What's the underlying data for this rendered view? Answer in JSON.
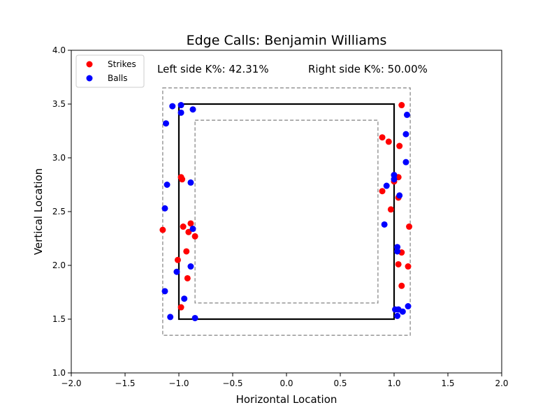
{
  "chart_data": {
    "type": "scatter",
    "title": "Edge Calls: Benjamin Williams",
    "xlabel": "Horizontal Location",
    "ylabel": "Vertical Location",
    "xlim": [
      -2.0,
      2.0
    ],
    "ylim": [
      1.0,
      4.0
    ],
    "x_ticks": [
      "−2.0",
      "−1.5",
      "−1.0",
      "−0.5",
      "0.0",
      "0.5",
      "1.0",
      "1.5",
      "2.0"
    ],
    "y_ticks": [
      "1.0",
      "1.5",
      "2.0",
      "2.5",
      "3.0",
      "3.5",
      "4.0"
    ],
    "grid": false,
    "legend_position": "top-left",
    "annotations": {
      "left": "Left side K%: 42.31%",
      "right": "Right side K%: 50.00%"
    },
    "zones": {
      "strike_zone": {
        "x": [
          -1.0,
          1.0
        ],
        "y": [
          1.5,
          3.5
        ]
      },
      "outer_edge": {
        "x": [
          -1.15,
          1.15
        ],
        "y": [
          1.35,
          3.65
        ]
      },
      "inner_edge": {
        "x": [
          -0.85,
          0.85
        ],
        "y": [
          1.65,
          3.35
        ]
      }
    },
    "series": [
      {
        "name": "Strikes",
        "color": "#ff0000",
        "points": [
          [
            -1.15,
            2.33
          ],
          [
            -0.98,
            2.82
          ],
          [
            -0.97,
            2.8
          ],
          [
            -0.96,
            2.36
          ],
          [
            -0.89,
            2.39
          ],
          [
            -0.91,
            2.31
          ],
          [
            -0.85,
            2.27
          ],
          [
            -0.93,
            2.13
          ],
          [
            -1.01,
            2.05
          ],
          [
            -0.92,
            1.88
          ],
          [
            -0.98,
            1.61
          ],
          [
            1.07,
            3.49
          ],
          [
            0.89,
            3.19
          ],
          [
            0.95,
            3.15
          ],
          [
            1.05,
            3.11
          ],
          [
            1.0,
            2.84
          ],
          [
            1.04,
            2.82
          ],
          [
            1.0,
            2.78
          ],
          [
            0.89,
            2.69
          ],
          [
            1.04,
            2.63
          ],
          [
            0.97,
            2.52
          ],
          [
            1.14,
            2.36
          ],
          [
            1.07,
            2.12
          ],
          [
            1.04,
            2.01
          ],
          [
            1.13,
            1.99
          ],
          [
            1.07,
            1.81
          ]
        ]
      },
      {
        "name": "Balls",
        "color": "#0000ff",
        "points": [
          [
            -1.06,
            3.48
          ],
          [
            -0.98,
            3.49
          ],
          [
            -0.98,
            3.42
          ],
          [
            -0.87,
            3.45
          ],
          [
            -1.12,
            3.32
          ],
          [
            -1.11,
            2.75
          ],
          [
            -0.89,
            2.77
          ],
          [
            -1.13,
            2.53
          ],
          [
            -0.87,
            2.34
          ],
          [
            -0.89,
            1.99
          ],
          [
            -1.02,
            1.94
          ],
          [
            -0.95,
            1.69
          ],
          [
            -1.13,
            1.76
          ],
          [
            -1.08,
            1.52
          ],
          [
            -0.85,
            1.51
          ],
          [
            1.12,
            3.4
          ],
          [
            1.11,
            3.22
          ],
          [
            1.11,
            2.96
          ],
          [
            1.0,
            2.84
          ],
          [
            1.0,
            2.8
          ],
          [
            0.93,
            2.74
          ],
          [
            1.05,
            2.65
          ],
          [
            0.91,
            2.38
          ],
          [
            1.03,
            2.17
          ],
          [
            1.03,
            2.13
          ],
          [
            1.01,
            1.59
          ],
          [
            1.04,
            1.59
          ],
          [
            1.08,
            1.57
          ],
          [
            1.03,
            1.53
          ],
          [
            1.13,
            1.62
          ]
        ]
      }
    ]
  }
}
